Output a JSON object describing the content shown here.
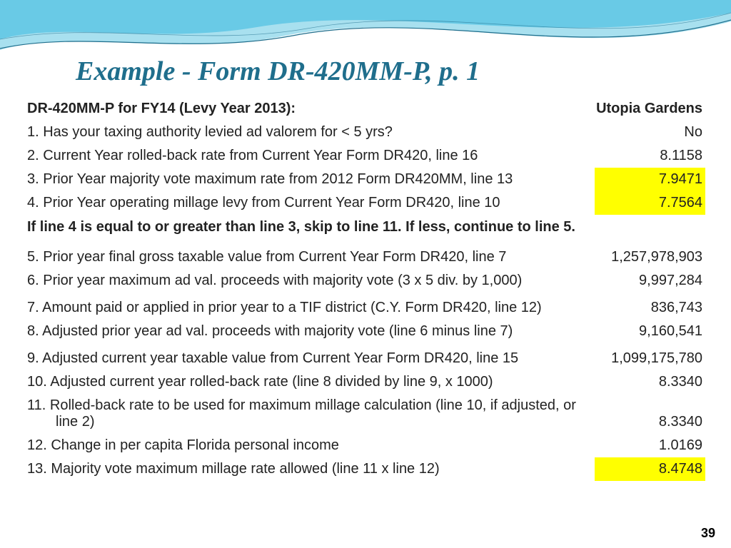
{
  "title": "Example - Form DR-420MM-P, p. 1",
  "title_color": "#1f6e8c",
  "header_left": "DR-420MM-P for FY14 (Levy Year 2013):",
  "header_right": "Utopia Gardens",
  "instruction_text": "If line 4 is equal to or greater than line 3, skip to line 11.  If less, continue to line 5.",
  "page_number": "39",
  "highlight_color": "#ffff00",
  "wave": {
    "light": "#a8e0ef",
    "mid": "#5ec5e4",
    "line": "#1f6e8c"
  },
  "rows": [
    {
      "label": "1. Has your taxing authority levied ad valorem for < 5 yrs?",
      "value": "No",
      "highlight": false
    },
    {
      "label": "2. Current Year rolled-back rate from Current Year Form DR420, line 16",
      "value": "8.1158",
      "highlight": false
    },
    {
      "label": "3. Prior Year majority vote maximum rate from 2012 Form DR420MM, line 13",
      "value": "7.9471",
      "highlight": true
    },
    {
      "label": "4. Prior Year operating millage levy from Current Year Form DR420, line 10",
      "value": "7.7564",
      "highlight": true
    }
  ],
  "rows2": [
    {
      "label": "5. Prior year final gross taxable value from Current Year Form DR420, line 7",
      "value": "1,257,978,903",
      "highlight": false,
      "gap": false
    },
    {
      "label": "6. Prior year maximum ad val. proceeds with majority vote (3 x 5 div. by 1,000)",
      "value": "9,997,284",
      "highlight": false,
      "gap": false
    },
    {
      "label": "7. Amount paid or applied in prior year to a TIF district (C.Y. Form DR420, line 12)",
      "value": "836,743",
      "highlight": false,
      "gap": true
    },
    {
      "label": "8. Adjusted prior year ad val. proceeds with majority vote (line 6 minus line 7)",
      "value": "9,160,541",
      "highlight": false,
      "gap": false
    },
    {
      "label": "9. Adjusted current year taxable value from Current Year Form DR420, line 15",
      "value": "1,099,175,780",
      "highlight": false,
      "gap": true
    },
    {
      "label": "10. Adjusted current year rolled-back rate (line 8 divided by line 9, x 1000)",
      "value": "8.3340",
      "highlight": false,
      "gap": false
    },
    {
      "label": "11. Rolled-back rate to be used for maximum millage calculation (line 10, if adjusted, or",
      "label2": "line 2)",
      "value": "8.3340",
      "highlight": false,
      "gap": false
    },
    {
      "label": "12. Change in per capita Florida personal income",
      "value": "1.0169",
      "highlight": false,
      "gap": false
    },
    {
      "label": "13. Majority vote maximum millage rate allowed (line 11 x line 12)",
      "value": "8.4748",
      "highlight": true,
      "gap": false
    }
  ]
}
